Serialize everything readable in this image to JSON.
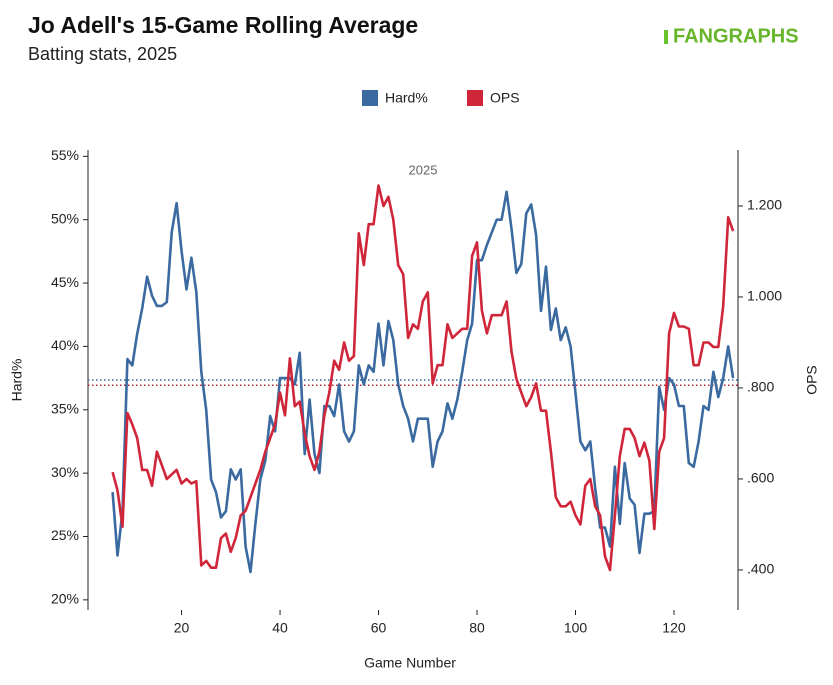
{
  "chart_data": {
    "type": "line",
    "title": "Jo Adell's 15-Game Rolling Average",
    "subtitle": "Batting stats, 2025",
    "logo": "FANGRAPHS",
    "annotation": "2025",
    "xlabel": "Game Number",
    "ylabel": "Hard%",
    "y2label": "OPS",
    "xlim": [
      1,
      133
    ],
    "xticks": [
      20,
      40,
      60,
      80,
      100,
      120
    ],
    "ylim": [
      19.2,
      55.5
    ],
    "yticks": [
      {
        "value": 20,
        "label": "20%"
      },
      {
        "value": 25,
        "label": "25%"
      },
      {
        "value": 30,
        "label": "30%"
      },
      {
        "value": 35,
        "label": "35%"
      },
      {
        "value": 40,
        "label": "40%"
      },
      {
        "value": 45,
        "label": "45%"
      },
      {
        "value": 50,
        "label": "50%"
      },
      {
        "value": 55,
        "label": "55%"
      }
    ],
    "y2lim": [
      0.312,
      1.323
    ],
    "y2ticks": [
      {
        "value": 0.4,
        "label": ".400"
      },
      {
        "value": 0.6,
        "label": ".600"
      },
      {
        "value": 0.8,
        "label": ".800"
      },
      {
        "value": 1.0,
        "label": "1.000"
      },
      {
        "value": 1.2,
        "label": "1.200"
      }
    ],
    "ref_lines": [
      {
        "axis": "y",
        "value": 37.35,
        "color": "#3a6aa0"
      },
      {
        "axis": "y2",
        "value": 0.806,
        "color": "#b02a37"
      }
    ],
    "x": [
      6,
      7,
      8,
      9,
      10,
      11,
      12,
      13,
      14,
      15,
      16,
      17,
      18,
      19,
      20,
      21,
      22,
      23,
      24,
      25,
      26,
      27,
      28,
      29,
      30,
      31,
      32,
      33,
      34,
      35,
      36,
      37,
      38,
      39,
      40,
      41,
      42,
      43,
      44,
      45,
      46,
      47,
      48,
      49,
      50,
      51,
      52,
      53,
      54,
      55,
      56,
      57,
      58,
      59,
      60,
      61,
      62,
      63,
      64,
      65,
      66,
      67,
      68,
      69,
      70,
      71,
      72,
      73,
      74,
      75,
      76,
      77,
      78,
      79,
      80,
      81,
      82,
      83,
      84,
      85,
      86,
      87,
      88,
      89,
      90,
      91,
      92,
      93,
      94,
      95,
      96,
      97,
      98,
      99,
      100,
      101,
      102,
      103,
      104,
      105,
      106,
      107,
      108,
      109,
      110,
      111,
      112,
      113,
      114,
      115,
      116,
      117,
      118,
      119,
      120,
      121,
      122,
      123,
      124,
      125,
      126,
      127,
      128,
      129,
      130,
      131,
      132
    ],
    "series": [
      {
        "name": "Hard%",
        "color": "#3a6aa0",
        "values": [
          28.5,
          23.5,
          27,
          39,
          38.5,
          41,
          43,
          45.5,
          44,
          43.2,
          43.2,
          43.5,
          49,
          51.3,
          47.5,
          44.5,
          47,
          44.3,
          38,
          35,
          29.5,
          28.5,
          26.5,
          27,
          30.3,
          29.5,
          30.3,
          24.2,
          22.2,
          26,
          29.5,
          31,
          34.5,
          33.3,
          37.5,
          37.5,
          37.5,
          37,
          39.5,
          31.5,
          35.8,
          31.5,
          30,
          35.3,
          35.3,
          34.5,
          37,
          33.3,
          32.5,
          33.3,
          38.5,
          37,
          38.5,
          38,
          41.8,
          38.5,
          42,
          40.5,
          37,
          35.3,
          34.3,
          32.5,
          34.3,
          34.3,
          34.3,
          30.5,
          32.5,
          33.3,
          35.5,
          34.3,
          35.8,
          38,
          40.5,
          41.8,
          46.8,
          46.8,
          48,
          49,
          50,
          50,
          52.2,
          49.3,
          45.8,
          46.5,
          50.5,
          51.2,
          48.8,
          42.8,
          46.3,
          41.3,
          43,
          40.5,
          41.5,
          40,
          36.3,
          32.5,
          31.8,
          32.5,
          28.8,
          25.7,
          25.7,
          24.2,
          30.5,
          26,
          30.8,
          28,
          27.5,
          23.7,
          26.8,
          26.8,
          27,
          36.8,
          35,
          37.5,
          37,
          35.3,
          35.3,
          30.8,
          30.5,
          32.5,
          35.3,
          35,
          38,
          36,
          37.5,
          40,
          37.5
        ]
      },
      {
        "name": "OPS",
        "color": "#d0263a",
        "axis": "y2",
        "values": [
          0.615,
          0.575,
          0.495,
          0.745,
          0.72,
          0.69,
          0.62,
          0.62,
          0.585,
          0.66,
          0.63,
          0.6,
          0.61,
          0.62,
          0.59,
          0.6,
          0.59,
          0.595,
          0.41,
          0.42,
          0.405,
          0.405,
          0.47,
          0.48,
          0.44,
          0.47,
          0.52,
          0.53,
          0.56,
          0.59,
          0.62,
          0.66,
          0.69,
          0.72,
          0.79,
          0.74,
          0.865,
          0.76,
          0.77,
          0.7,
          0.65,
          0.62,
          0.66,
          0.74,
          0.79,
          0.86,
          0.84,
          0.9,
          0.86,
          0.87,
          1.14,
          1.07,
          1.16,
          1.16,
          1.245,
          1.2,
          1.22,
          1.17,
          1.07,
          1.05,
          0.91,
          0.94,
          0.93,
          0.99,
          1.01,
          0.81,
          0.85,
          0.85,
          0.94,
          0.91,
          0.92,
          0.93,
          0.93,
          1.09,
          1.12,
          0.97,
          0.92,
          0.96,
          0.96,
          0.96,
          0.99,
          0.88,
          0.82,
          0.79,
          0.76,
          0.78,
          0.81,
          0.75,
          0.75,
          0.66,
          0.56,
          0.54,
          0.54,
          0.55,
          0.52,
          0.5,
          0.585,
          0.6,
          0.54,
          0.52,
          0.43,
          0.4,
          0.52,
          0.65,
          0.71,
          0.71,
          0.69,
          0.65,
          0.68,
          0.64,
          0.49,
          0.66,
          0.69,
          0.92,
          0.965,
          0.935,
          0.935,
          0.93,
          0.85,
          0.85,
          0.9,
          0.9,
          0.89,
          0.89,
          0.98,
          1.175,
          1.145
        ]
      }
    ]
  }
}
